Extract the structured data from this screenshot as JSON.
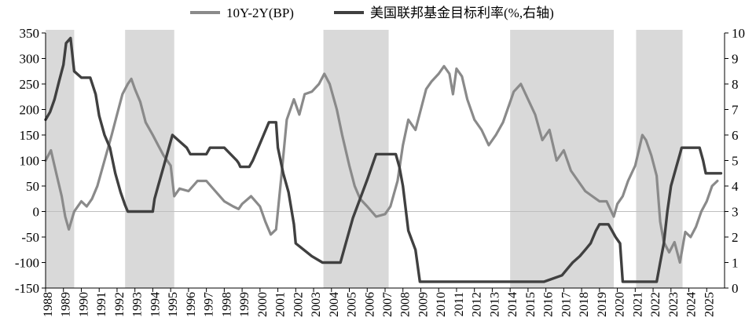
{
  "chart_data": {
    "type": "line",
    "title": "",
    "legend": {
      "position": "top"
    },
    "shaded_periods": [
      [
        1988.0,
        1989.6
      ],
      [
        1992.45,
        1995.2
      ],
      [
        2003.55,
        2007.2
      ],
      [
        2014.0,
        2019.8
      ],
      [
        2021.05,
        2023.65
      ]
    ],
    "x_axis": {
      "range": [
        1988,
        2026
      ],
      "ticks": [
        "1988",
        "1989",
        "1990",
        "1991",
        "1992",
        "1993",
        "1994",
        "1995",
        "1996",
        "1997",
        "1998",
        "1999",
        "2000",
        "2001",
        "2002",
        "2003",
        "2004",
        "2005",
        "2006",
        "2007",
        "2008",
        "2009",
        "2010",
        "2011",
        "2012",
        "2013",
        "2014",
        "2015",
        "2016",
        "2017",
        "2018",
        "2019",
        "2020",
        "2021",
        "2022",
        "2023",
        "2024",
        "2025"
      ]
    },
    "y_left": {
      "range": [
        -150,
        350
      ],
      "ticks": [
        "350",
        "300",
        "250",
        "200",
        "150",
        "100",
        "50",
        "0",
        "-50",
        "-100",
        "-150"
      ]
    },
    "y_right": {
      "range": [
        0,
        10
      ],
      "ticks": [
        "10",
        "9",
        "8",
        "7",
        "6",
        "5",
        "4",
        "3",
        "2",
        "1",
        "0"
      ]
    },
    "series": [
      {
        "name": "10Y-2Y(BP)",
        "axis": "left",
        "color": "#8a8a8a",
        "x": [
          1988.0,
          1988.3,
          1988.6,
          1988.9,
          1989.1,
          1989.3,
          1989.6,
          1990.0,
          1990.3,
          1990.6,
          1990.9,
          1991.3,
          1991.7,
          1992.0,
          1992.3,
          1992.6,
          1992.8,
          1993.0,
          1993.3,
          1993.6,
          1994.0,
          1994.3,
          1994.6,
          1995.0,
          1995.2,
          1995.5,
          1996.0,
          1996.5,
          1997.0,
          1997.5,
          1998.0,
          1998.5,
          1998.8,
          1999.0,
          1999.5,
          2000.0,
          2000.3,
          2000.6,
          2000.9,
          2001.2,
          2001.5,
          2001.9,
          2002.2,
          2002.5,
          2002.9,
          2003.3,
          2003.6,
          2003.9,
          2004.3,
          2004.6,
          2005.0,
          2005.3,
          2005.6,
          2006.0,
          2006.5,
          2007.0,
          2007.3,
          2007.7,
          2008.0,
          2008.3,
          2008.7,
          2009.0,
          2009.3,
          2009.6,
          2010.0,
          2010.3,
          2010.6,
          2010.8,
          2011.0,
          2011.3,
          2011.6,
          2012.0,
          2012.4,
          2012.8,
          2013.2,
          2013.6,
          2014.0,
          2014.2,
          2014.6,
          2015.0,
          2015.4,
          2015.8,
          2016.2,
          2016.6,
          2017.0,
          2017.4,
          2017.8,
          2018.2,
          2018.6,
          2019.0,
          2019.4,
          2019.8,
          2020.0,
          2020.3,
          2020.6,
          2021.0,
          2021.2,
          2021.4,
          2021.6,
          2021.9,
          2022.2,
          2022.4,
          2022.6,
          2022.9,
          2023.2,
          2023.5,
          2023.8,
          2024.1,
          2024.4,
          2024.7,
          2025.0,
          2025.3,
          2025.6
        ],
        "values": [
          100,
          120,
          75,
          30,
          -10,
          -35,
          0,
          20,
          10,
          25,
          50,
          100,
          150,
          190,
          230,
          250,
          260,
          240,
          215,
          175,
          150,
          130,
          110,
          90,
          30,
          45,
          40,
          60,
          60,
          40,
          20,
          10,
          5,
          15,
          30,
          10,
          -20,
          -45,
          -35,
          70,
          180,
          220,
          190,
          230,
          235,
          250,
          270,
          250,
          200,
          150,
          90,
          50,
          25,
          10,
          -10,
          -5,
          10,
          60,
          130,
          180,
          160,
          200,
          240,
          255,
          270,
          285,
          270,
          230,
          280,
          265,
          220,
          180,
          160,
          130,
          150,
          175,
          215,
          235,
          250,
          220,
          190,
          140,
          160,
          100,
          120,
          80,
          60,
          40,
          30,
          20,
          20,
          -10,
          15,
          30,
          60,
          90,
          120,
          150,
          140,
          110,
          70,
          -20,
          -60,
          -80,
          -60,
          -100,
          -40,
          -50,
          -30,
          0,
          20,
          50,
          60
        ]
      },
      {
        "name": "美国联邦基金目标利率(%,右轴)",
        "axis": "right",
        "color": "#404040",
        "x": [
          1988.0,
          1988.25,
          1988.5,
          1988.75,
          1989.0,
          1989.15,
          1989.4,
          1989.6,
          1990.0,
          1990.5,
          1990.8,
          1991.0,
          1991.3,
          1991.6,
          1991.9,
          1992.2,
          1992.45,
          1992.6,
          1993.0,
          1994.0,
          1994.1,
          1994.3,
          1994.6,
          1994.9,
          1995.1,
          1995.5,
          1995.9,
          1996.1,
          1997.0,
          1997.2,
          1998.0,
          1998.7,
          1998.8,
          1998.9,
          1999.4,
          1999.6,
          1999.9,
          2000.2,
          2000.5,
          2000.9,
          2001.0,
          2001.3,
          2001.6,
          2001.9,
          2002.0,
          2002.9,
          2003.5,
          2004.5,
          2004.8,
          2005.2,
          2005.6,
          2006.0,
          2006.5,
          2007.6,
          2007.8,
          2008.0,
          2008.3,
          2008.7,
          2008.95,
          2015.9,
          2016.9,
          2017.2,
          2017.5,
          2017.9,
          2018.2,
          2018.5,
          2018.8,
          2019.0,
          2019.5,
          2019.7,
          2019.9,
          2020.15,
          2020.3,
          2021.0,
          2022.2,
          2022.4,
          2022.6,
          2022.8,
          2023.0,
          2023.3,
          2023.5,
          2023.6,
          2024.6,
          2024.8,
          2024.95,
          2025.8
        ],
        "values": [
          6.6,
          6.9,
          7.4,
          8.1,
          8.75,
          9.6,
          9.8,
          8.5,
          8.25,
          8.25,
          7.6,
          6.75,
          6.0,
          5.5,
          4.5,
          3.75,
          3.25,
          3.0,
          3.0,
          3.0,
          3.5,
          4.0,
          4.75,
          5.5,
          6.0,
          5.75,
          5.5,
          5.25,
          5.25,
          5.5,
          5.5,
          5.0,
          4.9,
          4.75,
          4.75,
          5.0,
          5.5,
          6.0,
          6.5,
          6.5,
          5.5,
          4.5,
          3.75,
          2.5,
          1.75,
          1.25,
          1.0,
          1.0,
          1.75,
          2.75,
          3.5,
          4.25,
          5.25,
          5.25,
          4.75,
          4.0,
          2.25,
          1.5,
          0.25,
          0.25,
          0.5,
          0.75,
          1.0,
          1.25,
          1.5,
          1.75,
          2.25,
          2.5,
          2.5,
          2.25,
          2.0,
          1.75,
          0.25,
          0.25,
          0.25,
          1.0,
          1.75,
          3.0,
          4.0,
          4.75,
          5.25,
          5.5,
          5.5,
          5.0,
          4.5,
          4.5
        ]
      }
    ]
  }
}
